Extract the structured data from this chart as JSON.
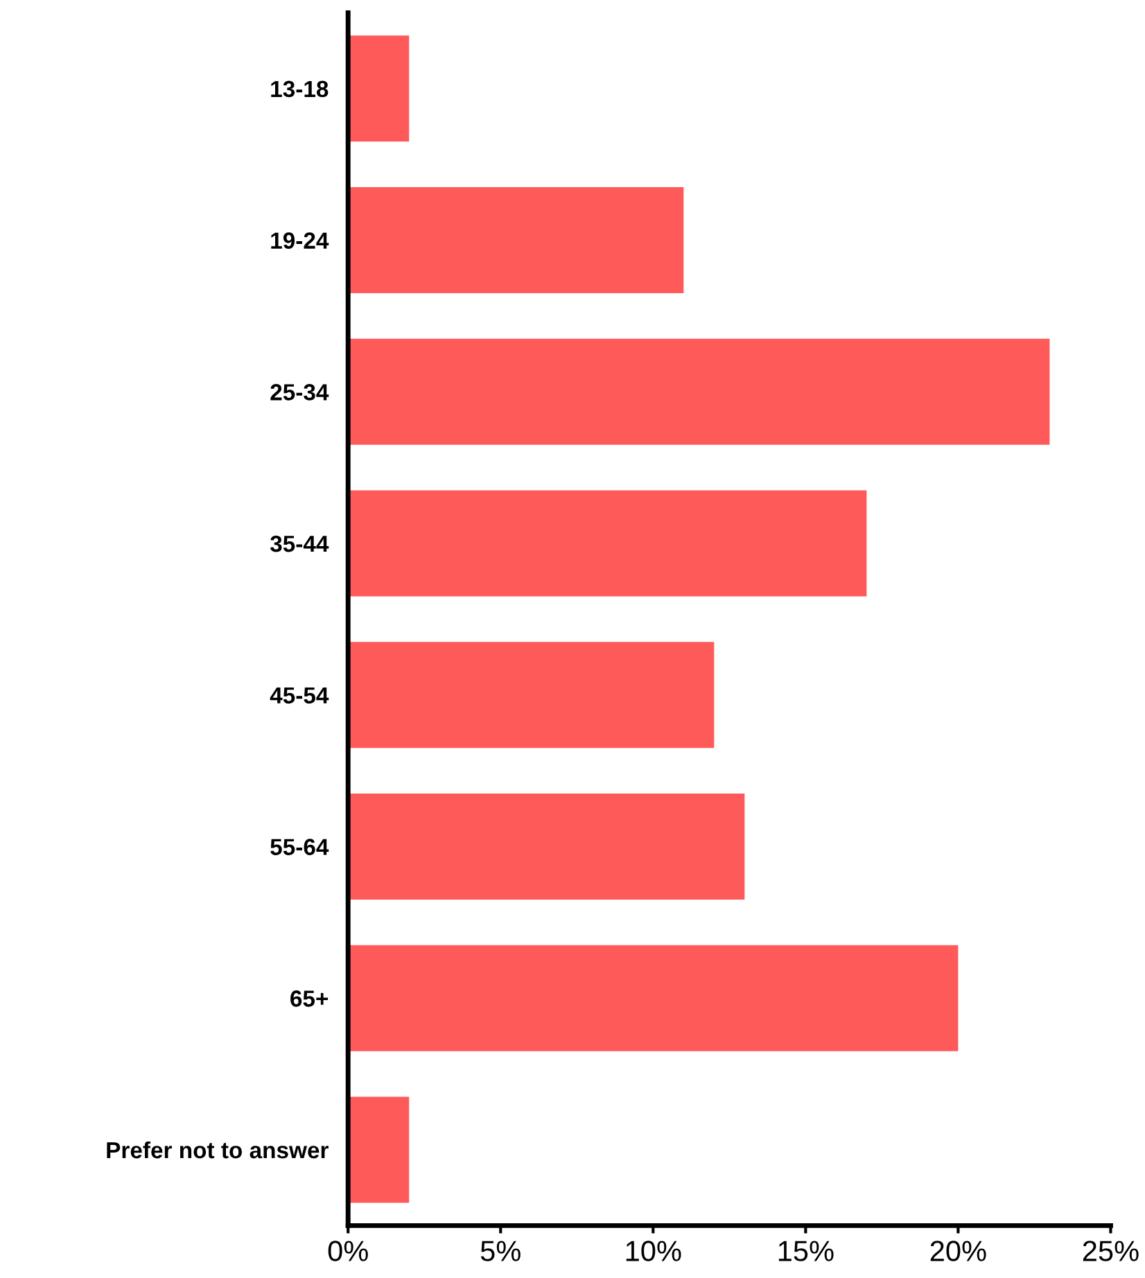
{
  "chart_data": {
    "type": "bar",
    "orientation": "horizontal",
    "categories": [
      "13-18",
      "19-24",
      "25-34",
      "35-44",
      "45-54",
      "55-64",
      "65+",
      "Prefer not to answer"
    ],
    "values": [
      2,
      11,
      23,
      17,
      12,
      13,
      20,
      2
    ],
    "color": "#ff5a5a",
    "xlim": [
      0,
      25
    ],
    "xticks": [
      {
        "value": 0,
        "label": "0%"
      },
      {
        "value": 5,
        "label": "5%"
      },
      {
        "value": 10,
        "label": "10%"
      },
      {
        "value": 15,
        "label": "15%"
      },
      {
        "value": 20,
        "label": "20%"
      },
      {
        "value": 25,
        "label": "25%"
      }
    ],
    "grid": false,
    "legend": false
  }
}
